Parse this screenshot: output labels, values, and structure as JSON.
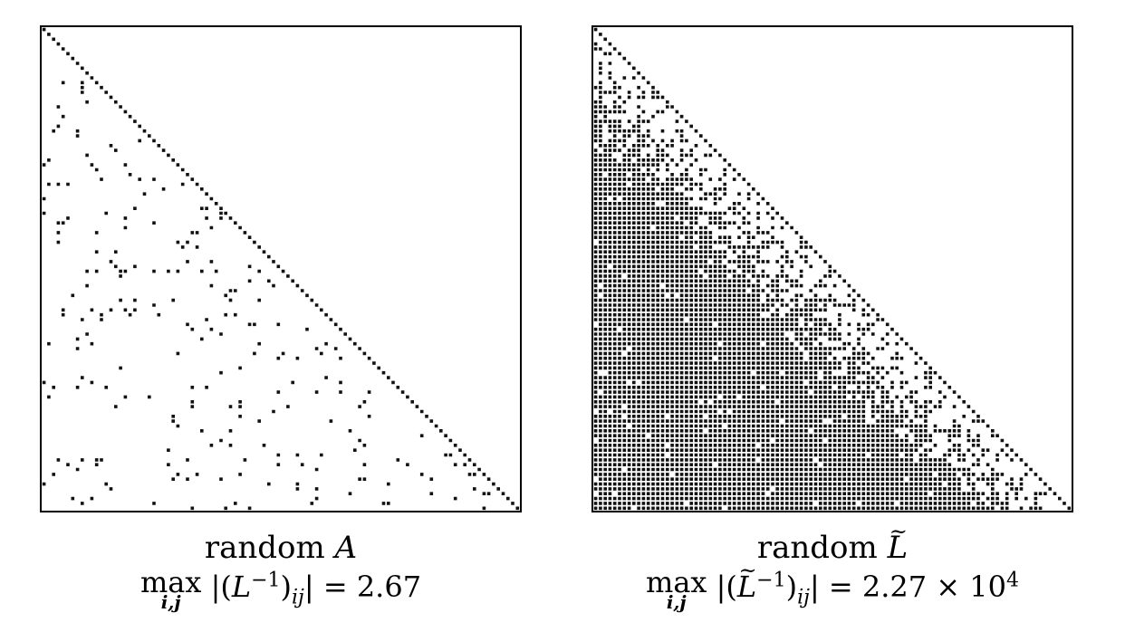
{
  "figure": {
    "left": {
      "caption_word": "random",
      "caption_symbol": "A",
      "max_op": "max",
      "max_sub": "i,j",
      "expr_matrix": "L",
      "expr_exp": "−1",
      "expr_idx": "ij",
      "expr_value": "= 2.67",
      "pattern": "sparse lower-triangular, unit diagonal"
    },
    "right": {
      "caption_word": "random",
      "caption_symbol": "L",
      "caption_symbol_accent": "~",
      "max_op": "max",
      "max_sub": "i,j",
      "expr_matrix": "L",
      "expr_matrix_accent": "~",
      "expr_exp": "−1",
      "expr_idx": "ij",
      "expr_value": "= 2.27 × 10",
      "expr_value_exp": "4",
      "pattern": "dense lower-triangular, unit diagonal"
    }
  }
}
